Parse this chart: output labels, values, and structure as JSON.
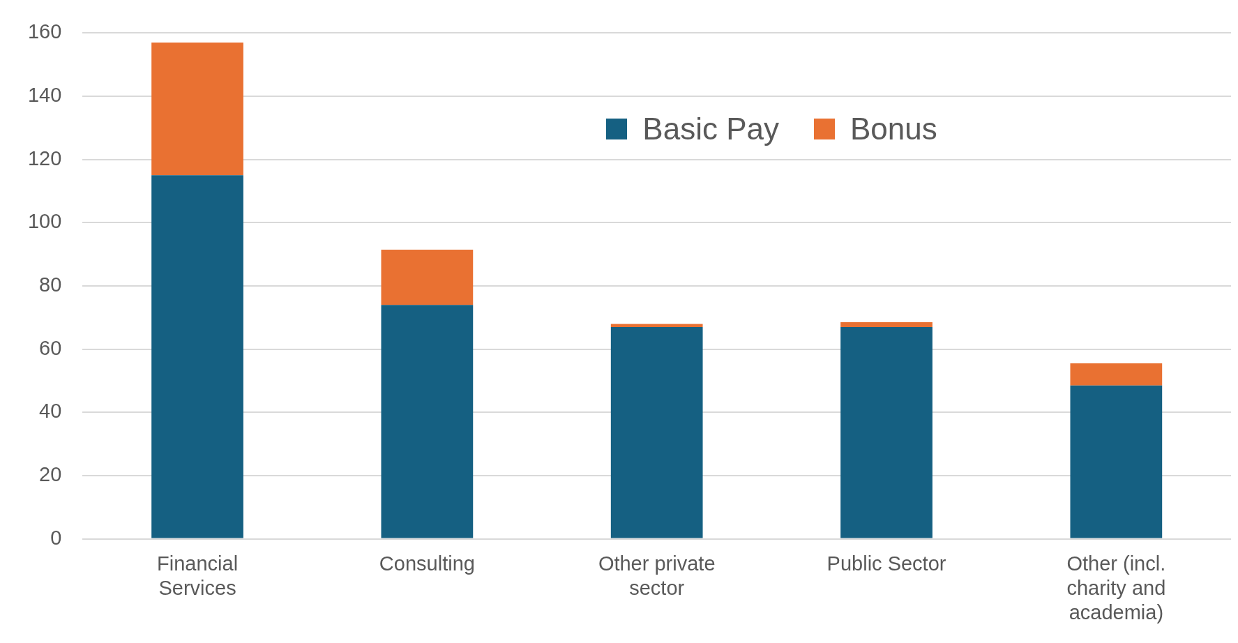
{
  "chart_data": {
    "type": "bar",
    "stacked": true,
    "categories": [
      "Financial Services",
      "Consulting",
      "Other private sector",
      "Public Sector",
      "Other (incl. charity and academia)"
    ],
    "series": [
      {
        "name": "Basic Pay",
        "color": "#156082",
        "values": [
          115,
          74,
          67,
          67,
          48.5
        ]
      },
      {
        "name": "Bonus",
        "color": "#e97132",
        "values": [
          42,
          17.5,
          1,
          1.5,
          7
        ]
      }
    ],
    "ylim": [
      0,
      160
    ],
    "yticks": [
      0,
      20,
      40,
      60,
      80,
      100,
      120,
      140,
      160
    ],
    "grid": "y",
    "legend": "top"
  }
}
